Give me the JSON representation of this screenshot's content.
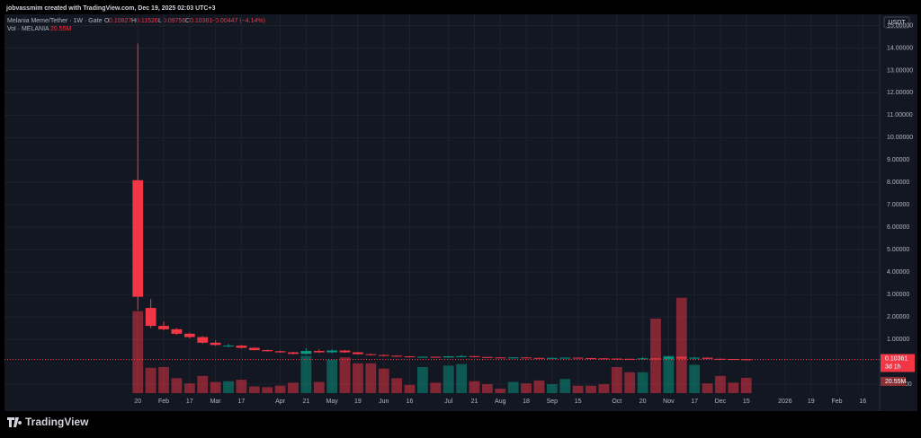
{
  "header": {
    "credit": "jobvassmim created with TradingView.com, Dec 19, 2025 02:03 UTC+3",
    "symbol": "Melania Meme/Tether · 1W · Gate",
    "change": "−0.00447 (−4.14%)",
    "vol_label": "Vol · MELANIA",
    "vol_value": "20.55M",
    "currency": "USDT",
    "countdown": "3d 1h",
    "logo": "TradingView",
    "ohlc_letters": [
      "O",
      "H",
      "L",
      "C"
    ]
  },
  "chart_data": {
    "type": "candlestick",
    "series": {
      "open": [
        8.1,
        2.4,
        1.6,
        1.45,
        1.25,
        1.1,
        0.85,
        0.7,
        0.72,
        0.62,
        0.52,
        0.47,
        0.42,
        0.35,
        0.48,
        0.42,
        0.5,
        0.42,
        0.34,
        0.3,
        0.27,
        0.24,
        0.2,
        0.22,
        0.19,
        0.24,
        0.25,
        0.21,
        0.19,
        0.18,
        0.19,
        0.17,
        0.16,
        0.17,
        0.18,
        0.16,
        0.15,
        0.14,
        0.13,
        0.12,
        0.15,
        0.13,
        0.22,
        0.14,
        0.18,
        0.13,
        0.12,
        0.10827
      ],
      "high": [
        14.2,
        2.8,
        1.8,
        1.5,
        1.3,
        1.15,
        0.95,
        0.8,
        0.75,
        0.65,
        0.55,
        0.5,
        0.45,
        0.6,
        0.55,
        0.55,
        0.52,
        0.44,
        0.36,
        0.32,
        0.28,
        0.25,
        0.24,
        0.23,
        0.26,
        0.3,
        0.26,
        0.22,
        0.2,
        0.2,
        0.2,
        0.18,
        0.18,
        0.19,
        0.19,
        0.17,
        0.16,
        0.15,
        0.14,
        0.2,
        0.16,
        0.25,
        0.24,
        0.22,
        0.19,
        0.14,
        0.13,
        0.11526
      ],
      "low": [
        2.3,
        1.5,
        1.4,
        1.2,
        1.05,
        0.8,
        0.7,
        0.65,
        0.6,
        0.5,
        0.45,
        0.4,
        0.33,
        0.33,
        0.4,
        0.38,
        0.4,
        0.32,
        0.28,
        0.25,
        0.22,
        0.19,
        0.19,
        0.18,
        0.18,
        0.22,
        0.2,
        0.18,
        0.17,
        0.17,
        0.16,
        0.15,
        0.15,
        0.16,
        0.15,
        0.14,
        0.13,
        0.12,
        0.11,
        0.11,
        0.12,
        0.12,
        0.13,
        0.13,
        0.12,
        0.11,
        0.1,
        0.09756
      ],
      "close": [
        2.9,
        1.6,
        1.45,
        1.25,
        1.1,
        0.85,
        0.75,
        0.72,
        0.62,
        0.52,
        0.47,
        0.42,
        0.35,
        0.48,
        0.42,
        0.5,
        0.42,
        0.34,
        0.3,
        0.27,
        0.24,
        0.2,
        0.22,
        0.19,
        0.24,
        0.25,
        0.21,
        0.19,
        0.18,
        0.19,
        0.17,
        0.16,
        0.17,
        0.18,
        0.16,
        0.15,
        0.14,
        0.13,
        0.12,
        0.15,
        0.13,
        0.22,
        0.14,
        0.18,
        0.13,
        0.12,
        0.11,
        0.10361
      ],
      "volume": [
        110,
        34,
        35,
        20,
        13,
        23,
        15,
        16,
        18,
        9,
        8,
        10,
        14,
        50,
        15,
        45,
        48,
        40,
        40,
        33,
        20,
        11,
        35,
        14,
        37,
        39,
        16,
        12,
        6,
        15,
        13,
        17,
        12,
        19,
        10,
        10,
        12,
        35,
        28,
        28,
        100,
        50,
        128,
        38,
        13,
        23,
        14,
        20.55
      ]
    },
    "up_color": "#089981",
    "down_color": "#f23645",
    "grid": true,
    "ylim": [
      -1.4,
      15.5
    ],
    "yticks": [
      {
        "value": -1,
        "label": "-1.00000"
      },
      {
        "value": 1,
        "label": "1.00000"
      },
      {
        "value": 2,
        "label": "2.00000"
      },
      {
        "value": 3,
        "label": "3.00000"
      },
      {
        "value": 4,
        "label": "4.00000"
      },
      {
        "value": 5,
        "label": "5.00000"
      },
      {
        "value": 6,
        "label": "6.00000"
      },
      {
        "value": 7,
        "label": "7.00000"
      },
      {
        "value": 8,
        "label": "8.00000"
      },
      {
        "value": 9,
        "label": "9.00000"
      },
      {
        "value": 10,
        "label": "10.00000"
      },
      {
        "value": 11,
        "label": "11.00000"
      },
      {
        "value": 12,
        "label": "12.00000"
      },
      {
        "value": 13,
        "label": "13.00000"
      },
      {
        "value": 14,
        "label": "14.00000"
      },
      {
        "value": 15,
        "label": "15.00000"
      }
    ],
    "xlim": [
      -10.3,
      57.3
    ],
    "xticks": [
      {
        "value": 0,
        "label": "20"
      },
      {
        "value": 2,
        "label": "Feb"
      },
      {
        "value": 4,
        "label": "17"
      },
      {
        "value": 6,
        "label": "Mar"
      },
      {
        "value": 8,
        "label": "17"
      },
      {
        "value": 11,
        "label": "Apr"
      },
      {
        "value": 13,
        "label": "21"
      },
      {
        "value": 15,
        "label": "May"
      },
      {
        "value": 17,
        "label": "19"
      },
      {
        "value": 19,
        "label": "Jun"
      },
      {
        "value": 21,
        "label": "16"
      },
      {
        "value": 24,
        "label": "Jul"
      },
      {
        "value": 26,
        "label": "21"
      },
      {
        "value": 28,
        "label": "Aug"
      },
      {
        "value": 30,
        "label": "18"
      },
      {
        "value": 32,
        "label": "Sep"
      },
      {
        "value": 34,
        "label": "15"
      },
      {
        "value": 37,
        "label": "Oct"
      },
      {
        "value": 39,
        "label": "20"
      },
      {
        "value": 41,
        "label": "Nov"
      },
      {
        "value": 43,
        "label": "17"
      },
      {
        "value": 45,
        "label": "Dec"
      },
      {
        "value": 47,
        "label": "15"
      },
      {
        "value": 50,
        "label": "2026"
      },
      {
        "value": 52,
        "label": "19"
      },
      {
        "value": 54,
        "label": "Feb"
      },
      {
        "value": 56,
        "label": "16"
      }
    ]
  }
}
